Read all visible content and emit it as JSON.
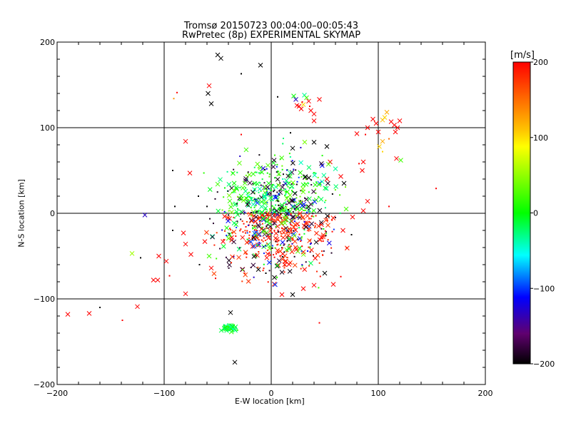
{
  "title": "Tromsø 20150723 00:04:00–00:05:43",
  "subtitle": "RwPretec (8p) EXPERIMENTAL SKYMAP",
  "chart_data": {
    "type": "scatter",
    "title": "Tromsø 20150723 00:04:00–00:05:43",
    "subtitle": "RwPretec (8p) EXPERIMENTAL SKYMAP",
    "xlabel": "E-W location [km]",
    "ylabel": "N-S location [km]",
    "xlim": [
      -200,
      200
    ],
    "ylim": [
      -200,
      200
    ],
    "xticks": [
      -200,
      -100,
      0,
      100,
      200
    ],
    "yticks": [
      -200,
      -100,
      0,
      100,
      200
    ],
    "grid": true,
    "colorbar": {
      "label": "[m/s]",
      "range": [
        -200,
        200
      ],
      "ticks": [
        200,
        100,
        0,
        -100,
        -200
      ],
      "colormap": "rainbow (black-purple-blue-cyan-green-yellow-red)"
    },
    "marker_types": [
      "x",
      "dot"
    ],
    "points": [
      {
        "x": -50,
        "y": 185,
        "v": -200,
        "m": "x"
      },
      {
        "x": -47,
        "y": 181,
        "v": -200,
        "m": "x"
      },
      {
        "x": -28,
        "y": 163,
        "v": -200,
        "m": "dot"
      },
      {
        "x": -10,
        "y": 173,
        "v": -200,
        "m": "x"
      },
      {
        "x": -58,
        "y": 149,
        "v": 200,
        "m": "x"
      },
      {
        "x": -59,
        "y": 140,
        "v": -200,
        "m": "x"
      },
      {
        "x": -56,
        "y": 128,
        "v": -200,
        "m": "x"
      },
      {
        "x": -88,
        "y": 141,
        "v": 200,
        "m": "dot"
      },
      {
        "x": -91,
        "y": 134,
        "v": 130,
        "m": "dot"
      },
      {
        "x": 6,
        "y": 136,
        "v": -200,
        "m": "dot"
      },
      {
        "x": 21,
        "y": 137,
        "v": 0,
        "m": "x"
      },
      {
        "x": 23,
        "y": 133,
        "v": -120,
        "m": "x"
      },
      {
        "x": 26,
        "y": 125,
        "v": 200,
        "m": "x"
      },
      {
        "x": 28,
        "y": 122,
        "v": 200,
        "m": "x"
      },
      {
        "x": 30,
        "y": 127,
        "v": 100,
        "m": "x"
      },
      {
        "x": 31,
        "y": 138,
        "v": -30,
        "m": "x"
      },
      {
        "x": 33,
        "y": 135,
        "v": 20,
        "m": "x"
      },
      {
        "x": 35,
        "y": 131,
        "v": 200,
        "m": "x"
      },
      {
        "x": 37,
        "y": 120,
        "v": 200,
        "m": "x"
      },
      {
        "x": 40,
        "y": 116,
        "v": 200,
        "m": "x"
      },
      {
        "x": 45,
        "y": 133,
        "v": 200,
        "m": "x"
      },
      {
        "x": 40,
        "y": 108,
        "v": 200,
        "m": "x"
      },
      {
        "x": 24,
        "y": 126,
        "v": 200,
        "m": "x"
      },
      {
        "x": 29,
        "y": 130,
        "v": 200,
        "m": "dot"
      },
      {
        "x": 36,
        "y": 125,
        "v": 200,
        "m": "dot"
      },
      {
        "x": 95,
        "y": 110,
        "v": 200,
        "m": "x"
      },
      {
        "x": 98,
        "y": 105,
        "v": 200,
        "m": "x"
      },
      {
        "x": 100,
        "y": 95,
        "v": 200,
        "m": "x"
      },
      {
        "x": 104,
        "y": 109,
        "v": 110,
        "m": "x"
      },
      {
        "x": 106,
        "y": 112,
        "v": 100,
        "m": "x"
      },
      {
        "x": 108,
        "y": 118,
        "v": 120,
        "m": "x"
      },
      {
        "x": 101,
        "y": 78,
        "v": 100,
        "m": "x"
      },
      {
        "x": 104,
        "y": 84,
        "v": 120,
        "m": "x"
      },
      {
        "x": 104,
        "y": 72,
        "v": 100,
        "m": "dot"
      },
      {
        "x": 110,
        "y": 87,
        "v": 150,
        "m": "dot"
      },
      {
        "x": 112,
        "y": 107,
        "v": 200,
        "m": "x"
      },
      {
        "x": 115,
        "y": 103,
        "v": 200,
        "m": "x"
      },
      {
        "x": 118,
        "y": 100,
        "v": 200,
        "m": "x"
      },
      {
        "x": 120,
        "y": 108,
        "v": 200,
        "m": "x"
      },
      {
        "x": 116,
        "y": 95,
        "v": 200,
        "m": "x"
      },
      {
        "x": 117,
        "y": 64,
        "v": 200,
        "m": "x"
      },
      {
        "x": 121,
        "y": 62,
        "v": 20,
        "m": "x"
      },
      {
        "x": 88,
        "y": 92,
        "v": 200,
        "m": "dot"
      },
      {
        "x": 80,
        "y": 93,
        "v": 200,
        "m": "x"
      },
      {
        "x": 86,
        "y": 60,
        "v": 200,
        "m": "x"
      },
      {
        "x": 82,
        "y": 58,
        "v": 200,
        "m": "dot"
      },
      {
        "x": 154,
        "y": 29,
        "v": 200,
        "m": "dot"
      },
      {
        "x": 110,
        "y": 8,
        "v": 200,
        "m": "dot"
      },
      {
        "x": 90,
        "y": 14,
        "v": 200,
        "m": "x"
      },
      {
        "x": 86,
        "y": 3,
        "v": 200,
        "m": "x"
      },
      {
        "x": 90,
        "y": 100,
        "v": 200,
        "m": "x"
      },
      {
        "x": -118,
        "y": -2,
        "v": -120,
        "m": "x"
      },
      {
        "x": -130,
        "y": -47,
        "v": 50,
        "m": "x"
      },
      {
        "x": -122,
        "y": -52,
        "v": -200,
        "m": "dot"
      },
      {
        "x": -105,
        "y": -50,
        "v": 200,
        "m": "x"
      },
      {
        "x": -98,
        "y": -56,
        "v": 200,
        "m": "x"
      },
      {
        "x": -110,
        "y": -78,
        "v": 200,
        "m": "x"
      },
      {
        "x": -106,
        "y": -78,
        "v": 200,
        "m": "x"
      },
      {
        "x": -95,
        "y": -73,
        "v": 200,
        "m": "dot"
      },
      {
        "x": -80,
        "y": -94,
        "v": 200,
        "m": "x"
      },
      {
        "x": -190,
        "y": -118,
        "v": 200,
        "m": "x"
      },
      {
        "x": -170,
        "y": -117,
        "v": 200,
        "m": "x"
      },
      {
        "x": -160,
        "y": -110,
        "v": -200,
        "m": "dot"
      },
      {
        "x": -139,
        "y": -125,
        "v": 200,
        "m": "dot"
      },
      {
        "x": -125,
        "y": -109,
        "v": 200,
        "m": "x"
      },
      {
        "x": -80,
        "y": 84,
        "v": 200,
        "m": "x"
      },
      {
        "x": -76,
        "y": 47,
        "v": 200,
        "m": "x"
      },
      {
        "x": -92,
        "y": 50,
        "v": -200,
        "m": "dot"
      },
      {
        "x": -90,
        "y": 8,
        "v": -200,
        "m": "dot"
      },
      {
        "x": -92,
        "y": -20,
        "v": -200,
        "m": "dot"
      },
      {
        "x": -82,
        "y": -23,
        "v": 200,
        "m": "x"
      },
      {
        "x": -80,
        "y": -36,
        "v": 200,
        "m": "x"
      },
      {
        "x": -75,
        "y": -48,
        "v": 200,
        "m": "x"
      },
      {
        "x": -58,
        "y": -50,
        "v": 20,
        "m": "x"
      },
      {
        "x": -62,
        "y": -33,
        "v": 200,
        "m": "x"
      },
      {
        "x": -67,
        "y": -60,
        "v": -200,
        "m": "dot"
      },
      {
        "x": -52,
        "y": -76,
        "v": 200,
        "m": "dot"
      },
      {
        "x": -55,
        "y": -27,
        "v": -30,
        "m": "x"
      },
      {
        "x": -45,
        "y": -33,
        "v": 200,
        "m": "x"
      },
      {
        "x": -38,
        "y": -116,
        "v": -200,
        "m": "x"
      },
      {
        "x": -34,
        "y": -174,
        "v": -200,
        "m": "x"
      },
      {
        "x": 45,
        "y": -128,
        "v": 200,
        "m": "dot"
      },
      {
        "x": 20,
        "y": -95,
        "v": -200,
        "m": "x"
      },
      {
        "x": 10,
        "y": -95,
        "v": 200,
        "m": "x"
      },
      {
        "x": 30,
        "y": -88,
        "v": 200,
        "m": "x"
      },
      {
        "x": 40,
        "y": -84,
        "v": 200,
        "m": "x"
      },
      {
        "x": 58,
        "y": -83,
        "v": 200,
        "m": "x"
      },
      {
        "x": 50,
        "y": -70,
        "v": -200,
        "m": "x"
      },
      {
        "x": 65,
        "y": -74,
        "v": 200,
        "m": "dot"
      },
      {
        "x": 3,
        "y": -75,
        "v": -200,
        "m": "x"
      },
      {
        "x": -5,
        "y": -70,
        "v": -200,
        "m": "dot"
      },
      {
        "x": 70,
        "y": 5,
        "v": 20,
        "m": "x"
      },
      {
        "x": 67,
        "y": -20,
        "v": 200,
        "m": "x"
      },
      {
        "x": 75,
        "y": -25,
        "v": -200,
        "m": "dot"
      },
      {
        "x": 60,
        "y": 52,
        "v": -30,
        "m": "x"
      },
      {
        "x": 55,
        "y": 60,
        "v": 200,
        "m": "x"
      },
      {
        "x": 52,
        "y": 78,
        "v": -200,
        "m": "x"
      },
      {
        "x": 40,
        "y": 83,
        "v": -200,
        "m": "x"
      },
      {
        "x": 20,
        "y": 76,
        "v": -200,
        "m": "x"
      },
      {
        "x": 18,
        "y": 94,
        "v": -200,
        "m": "dot"
      },
      {
        "x": 52,
        "y": 40,
        "v": 200,
        "m": "x"
      },
      {
        "x": 65,
        "y": 43,
        "v": 200,
        "m": "x"
      },
      {
        "x": 68,
        "y": 35,
        "v": -200,
        "m": "x"
      },
      {
        "x": -28,
        "y": 92,
        "v": 200,
        "m": "dot"
      },
      {
        "x": -60,
        "y": 8,
        "v": -200,
        "m": "dot"
      },
      {
        "x": -68,
        "y": 20,
        "v": -200,
        "m": "dot"
      },
      {
        "x": -50,
        "y": 34,
        "v": 20,
        "m": "x"
      },
      {
        "x": -56,
        "y": -64,
        "v": 200,
        "m": "x"
      },
      {
        "x": 85,
        "y": 50,
        "v": 200,
        "m": "x"
      }
    ]
  }
}
